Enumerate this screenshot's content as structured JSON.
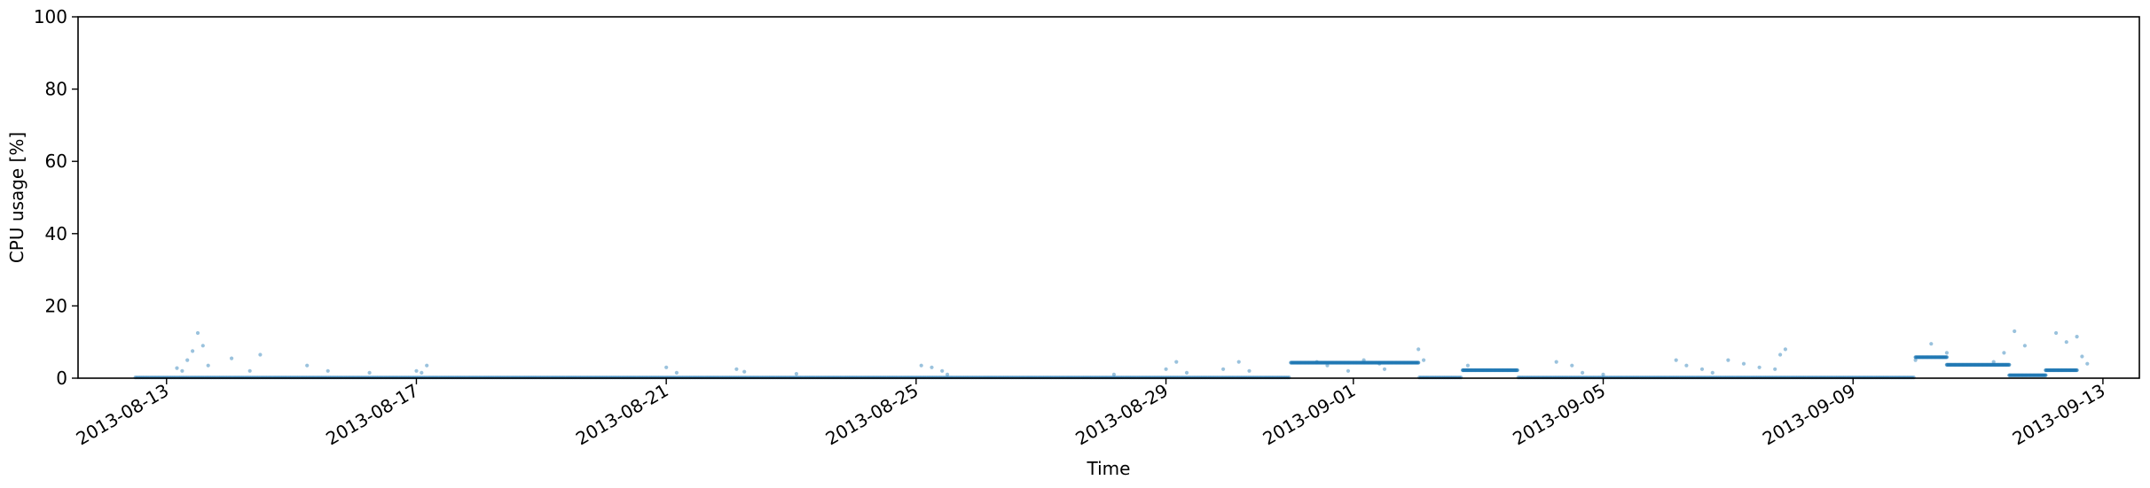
{
  "chart_data": {
    "type": "scatter",
    "title": "",
    "xlabel": "Time",
    "ylabel": "CPU usage [%]",
    "ylim": [
      0,
      100
    ],
    "xlim": [
      "2013-08-11T14:00",
      "2013-09-13T14:00"
    ],
    "yticks": [
      0,
      20,
      40,
      60,
      80,
      100
    ],
    "xticks": [
      "2013-08-13",
      "2013-08-17",
      "2013-08-21",
      "2013-08-25",
      "2013-08-29",
      "2013-09-01",
      "2013-09-05",
      "2013-09-09",
      "2013-09-13"
    ],
    "grid": false,
    "marker_color": "#1f77b4",
    "data_range": [
      "2013-08-12T12:00",
      "2013-09-12T14:00"
    ],
    "baseline_value": 0.2,
    "segments": [
      {
        "start": "2013-08-31T00:00",
        "end": "2013-09-02T01:00",
        "value": 4.3
      },
      {
        "start": "2013-09-02T18:00",
        "end": "2013-09-03T15:00",
        "value": 2.2
      },
      {
        "start": "2013-09-10T00:00",
        "end": "2013-09-10T12:00",
        "value": 5.8
      },
      {
        "start": "2013-09-10T12:00",
        "end": "2013-09-11T12:00",
        "value": 3.7
      },
      {
        "start": "2013-09-11T12:00",
        "end": "2013-09-12T02:00",
        "value": 0.8
      },
      {
        "start": "2013-09-12T02:00",
        "end": "2013-09-12T14:00",
        "value": 2.2
      }
    ],
    "spikes": [
      {
        "t": "2013-08-13T12:00",
        "y": 12.5
      },
      {
        "t": "2013-08-13T14:00",
        "y": 9.0
      },
      {
        "t": "2013-08-13T10:00",
        "y": 7.5
      },
      {
        "t": "2013-08-13T08:00",
        "y": 5.0
      },
      {
        "t": "2013-08-13T16:00",
        "y": 3.5
      },
      {
        "t": "2013-08-13T04:00",
        "y": 2.8
      },
      {
        "t": "2013-08-13T06:00",
        "y": 2.0
      },
      {
        "t": "2013-08-14T01:00",
        "y": 5.5
      },
      {
        "t": "2013-08-14T12:00",
        "y": 6.5
      },
      {
        "t": "2013-08-14T08:00",
        "y": 2.0
      },
      {
        "t": "2013-08-15T06:00",
        "y": 3.5
      },
      {
        "t": "2013-08-15T14:00",
        "y": 2.0
      },
      {
        "t": "2013-08-16T06:00",
        "y": 1.5
      },
      {
        "t": "2013-08-17T04:00",
        "y": 3.5
      },
      {
        "t": "2013-08-17T00:00",
        "y": 2.0
      },
      {
        "t": "2013-08-17T02:00",
        "y": 1.5
      },
      {
        "t": "2013-08-21T00:00",
        "y": 3.0
      },
      {
        "t": "2013-08-21T04:00",
        "y": 1.5
      },
      {
        "t": "2013-08-22T03:00",
        "y": 2.5
      },
      {
        "t": "2013-08-22T06:00",
        "y": 1.8
      },
      {
        "t": "2013-08-23T02:00",
        "y": 1.2
      },
      {
        "t": "2013-08-25T02:00",
        "y": 3.5
      },
      {
        "t": "2013-08-25T06:00",
        "y": 3.0
      },
      {
        "t": "2013-08-25T10:00",
        "y": 2.0
      },
      {
        "t": "2013-08-25T12:00",
        "y": 1.0
      },
      {
        "t": "2013-08-28T04:00",
        "y": 1.0
      },
      {
        "t": "2013-08-29T00:00",
        "y": 2.5
      },
      {
        "t": "2013-08-29T04:00",
        "y": 4.5
      },
      {
        "t": "2013-08-29T08:00",
        "y": 1.5
      },
      {
        "t": "2013-08-29T22:00",
        "y": 2.5
      },
      {
        "t": "2013-08-30T04:00",
        "y": 4.5
      },
      {
        "t": "2013-08-30T08:00",
        "y": 2.0
      },
      {
        "t": "2013-08-31T10:00",
        "y": 4.5
      },
      {
        "t": "2013-08-31T14:00",
        "y": 3.5
      },
      {
        "t": "2013-08-31T22:00",
        "y": 2.0
      },
      {
        "t": "2013-09-01T04:00",
        "y": 5.0
      },
      {
        "t": "2013-09-01T10:00",
        "y": 4.0
      },
      {
        "t": "2013-09-01T12:00",
        "y": 2.5
      },
      {
        "t": "2013-09-02T01:00",
        "y": 8.0
      },
      {
        "t": "2013-09-02T03:00",
        "y": 5.0
      },
      {
        "t": "2013-09-02T20:00",
        "y": 3.5
      },
      {
        "t": "2013-09-04T06:00",
        "y": 4.5
      },
      {
        "t": "2013-09-04T12:00",
        "y": 3.5
      },
      {
        "t": "2013-09-04T16:00",
        "y": 1.5
      },
      {
        "t": "2013-09-05T00:00",
        "y": 1.0
      },
      {
        "t": "2013-09-06T04:00",
        "y": 5.0
      },
      {
        "t": "2013-09-06T08:00",
        "y": 3.5
      },
      {
        "t": "2013-09-06T14:00",
        "y": 2.5
      },
      {
        "t": "2013-09-06T18:00",
        "y": 1.5
      },
      {
        "t": "2013-09-07T00:00",
        "y": 5.0
      },
      {
        "t": "2013-09-07T06:00",
        "y": 4.0
      },
      {
        "t": "2013-09-07T12:00",
        "y": 3.0
      },
      {
        "t": "2013-09-07T18:00",
        "y": 2.5
      },
      {
        "t": "2013-09-07T20:00",
        "y": 6.5
      },
      {
        "t": "2013-09-07T22:00",
        "y": 8.0
      },
      {
        "t": "2013-09-10T00:00",
        "y": 5.0
      },
      {
        "t": "2013-09-10T06:00",
        "y": 9.5
      },
      {
        "t": "2013-09-10T12:00",
        "y": 7.0
      },
      {
        "t": "2013-09-11T06:00",
        "y": 4.5
      },
      {
        "t": "2013-09-11T10:00",
        "y": 7.0
      },
      {
        "t": "2013-09-11T14:00",
        "y": 13.0
      },
      {
        "t": "2013-09-11T18:00",
        "y": 9.0
      },
      {
        "t": "2013-09-12T06:00",
        "y": 12.5
      },
      {
        "t": "2013-09-12T10:00",
        "y": 10.0
      },
      {
        "t": "2013-09-12T14:00",
        "y": 11.5
      },
      {
        "t": "2013-09-12T16:00",
        "y": 6.0
      },
      {
        "t": "2013-09-12T18:00",
        "y": 4.0
      }
    ]
  }
}
